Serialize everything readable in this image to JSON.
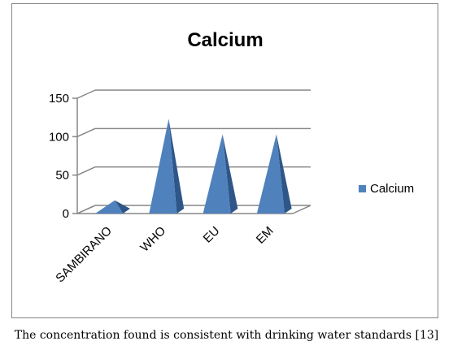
{
  "chart_data": {
    "type": "bar",
    "bar_shape": "pyramid-3d",
    "title": "Calcium",
    "categories": [
      "SAMBIRANO",
      "WHO",
      "EU",
      "EM"
    ],
    "series": [
      {
        "name": "Calcium",
        "values": [
          14,
          120,
          100,
          100
        ]
      }
    ],
    "yticks": [
      "0",
      "50",
      "100",
      "150"
    ],
    "ylim": [
      0,
      150
    ],
    "xlabel": "",
    "ylabel": "",
    "grid": true,
    "legend_position": "right",
    "colors": {
      "front": "#4f81bd",
      "side": "#2f5688",
      "grid": "#868686"
    }
  },
  "caption": "The concentration found is consistent with drinking water standards [13]"
}
